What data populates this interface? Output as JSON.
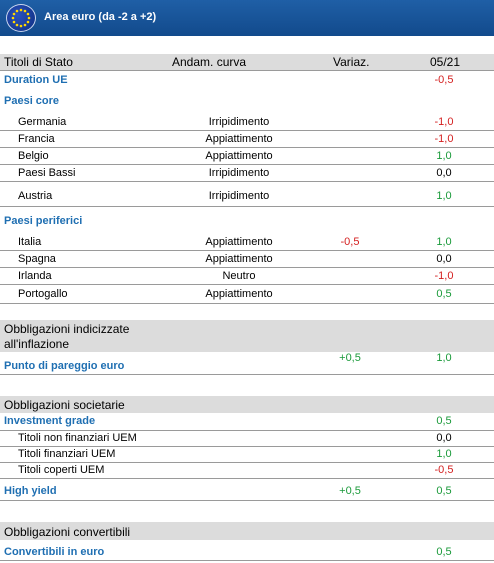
{
  "banner": {
    "title": "Area euro (da -2 a +2)"
  },
  "header": {
    "col1": "Titoli di Stato",
    "col2": "Andam. curva",
    "col3": "Variaz.",
    "col4": "05/21"
  },
  "duration": {
    "label": "Duration UE",
    "value": "-0,5"
  },
  "core": {
    "label": "Paesi core",
    "rows": [
      {
        "name": "Germania",
        "curve": "Irripidimento",
        "var": "",
        "value": "-1,0"
      },
      {
        "name": "Francia",
        "curve": "Appiattimento",
        "var": "",
        "value": "-1,0"
      },
      {
        "name": "Belgio",
        "curve": "Appiattimento",
        "var": "",
        "value": "1,0"
      },
      {
        "name": "Paesi Bassi",
        "curve": "Irripidimento",
        "var": "",
        "value": "0,0"
      },
      {
        "name": "Austria",
        "curve": "Irripidimento",
        "var": "",
        "value": "1,0"
      }
    ]
  },
  "periphery": {
    "label": "Paesi  periferici",
    "rows": [
      {
        "name": "Italia",
        "curve": "Appiattimento",
        "var": "-0,5",
        "value": "1,0"
      },
      {
        "name": "Spagna",
        "curve": "Appiattimento",
        "var": "",
        "value": "0,0"
      },
      {
        "name": "Irlanda",
        "curve": "Neutro",
        "var": "",
        "value": "-1,0"
      },
      {
        "name": "Portogallo",
        "curve": "Appiattimento",
        "var": "",
        "value": "0,5"
      }
    ]
  },
  "inflation": {
    "title_line1": "Obbligazioni indicizzate",
    "title_line2": "all'inflazione",
    "label": "Punto di pareggio euro",
    "var": "+0,5",
    "value": "1,0"
  },
  "corporate": {
    "title": "Obbligazioni societarie",
    "ig_label": "Investment grade",
    "ig_value": "0,5",
    "rows": [
      {
        "name": "Titoli non finanziari UEM",
        "value": "0,0"
      },
      {
        "name": "Titoli finanziari UEM",
        "value": "1,0"
      },
      {
        "name": "Titoli coperti UEM",
        "value": "-0,5"
      }
    ],
    "hy_label": "High yield",
    "hy_var": "+0,5",
    "hy_value": "0,5"
  },
  "convertibles": {
    "title": "Obbligazioni convertibili",
    "label": "Convertibili in euro",
    "value": "0,5"
  },
  "colors": {
    "banner": "#1f5fa6",
    "section": "#1f6fb2",
    "negative": "#d42020",
    "positive": "#1a9a3a",
    "band": "#dcdcdc"
  }
}
